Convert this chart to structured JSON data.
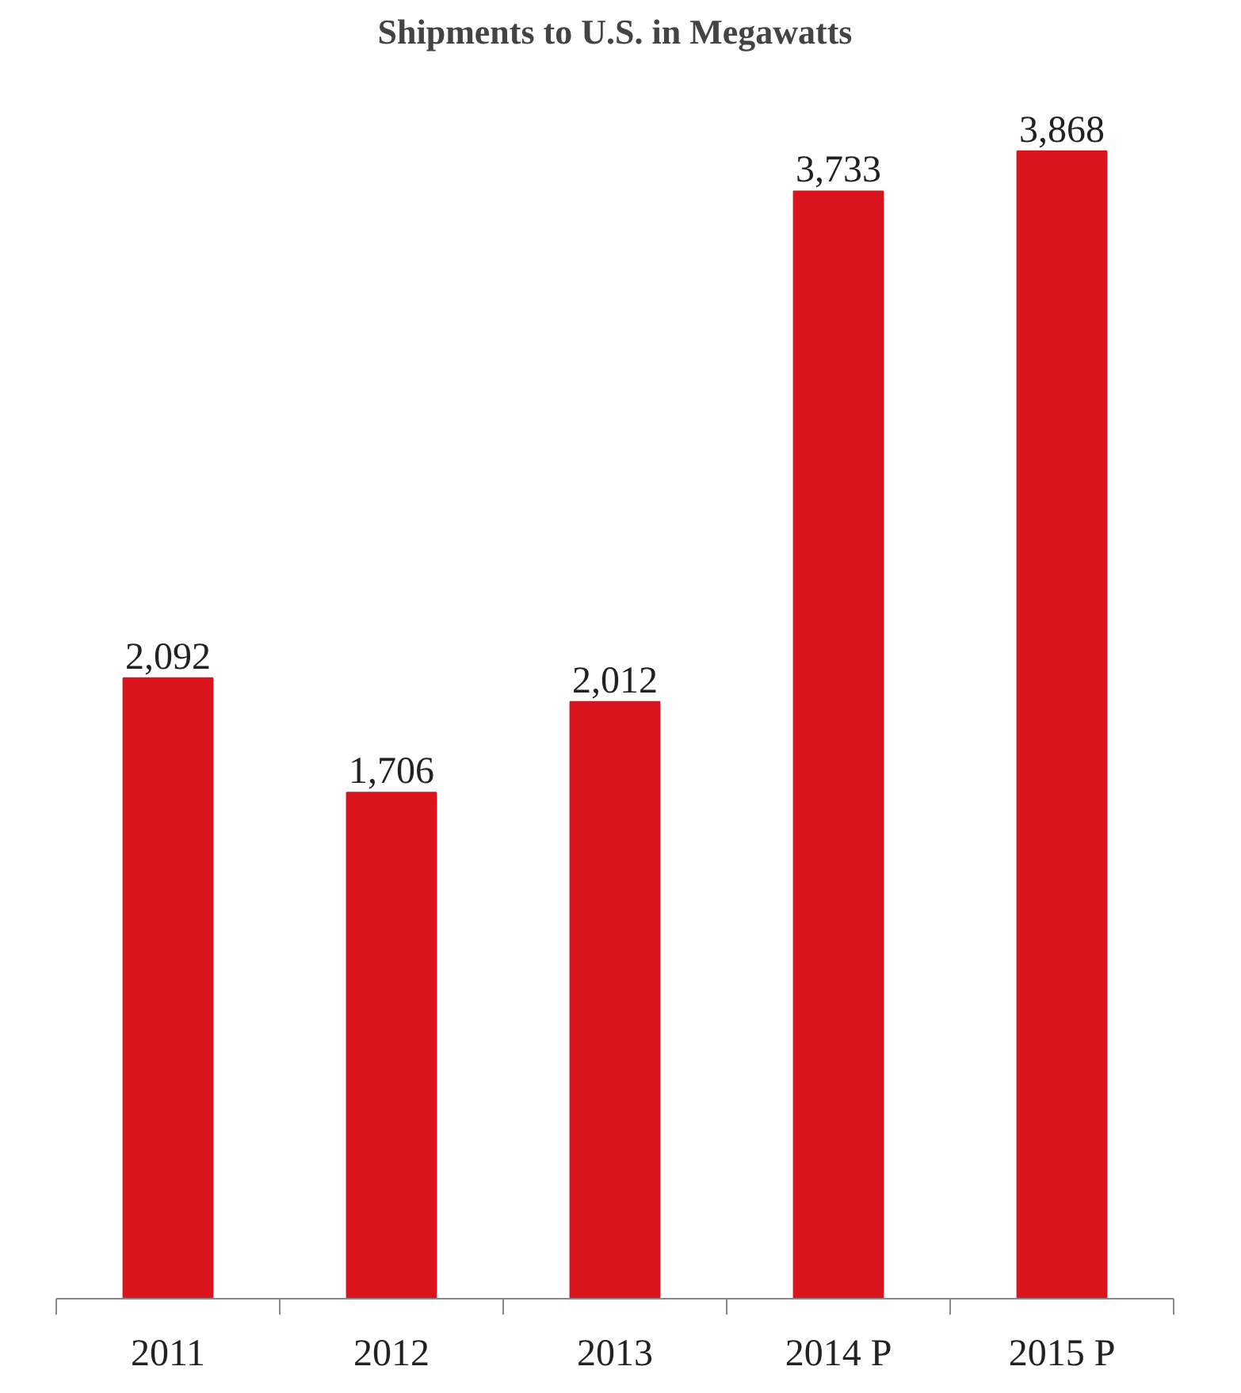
{
  "chart_data": {
    "type": "bar",
    "title": "Shipments to U.S. in Megawatts",
    "categories": [
      "2011",
      "2012",
      "2013",
      "2014 P",
      "2015 P"
    ],
    "values": [
      2092,
      1706,
      2012,
      3733,
      3868
    ],
    "value_labels": [
      "2,092",
      "1,706",
      "2,012",
      "3,733",
      "3,868"
    ],
    "color": "#d9141c",
    "grid": false
  }
}
